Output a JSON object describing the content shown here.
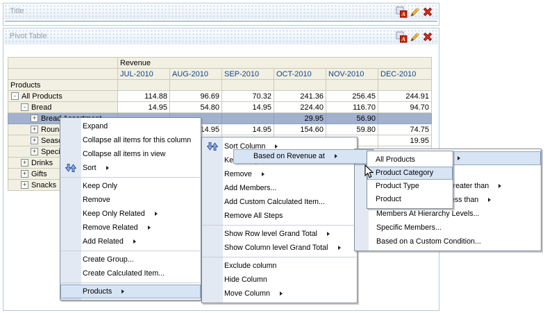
{
  "title_panel": {
    "title": "Title"
  },
  "pivot_panel": {
    "title": "Pivot Table"
  },
  "header_icons": {
    "format_badge": "A"
  },
  "colors": {
    "selection_row": "#A2B1CD",
    "menu_highlight": "#D7E4F4",
    "month_header_text": "#15428B",
    "header_cell_bg": "#F1F0E2",
    "delete_icon_red": "#D93025",
    "pencil_icon_orange": "#EFB540",
    "sort_icon_blue": "#2B4FA0"
  },
  "pivot_table": {
    "measure_label": "Revenue",
    "row_header_label": "Products",
    "column_headers": [
      "JUL-2010",
      "AUG-2010",
      "SEP-2010",
      "OCT-2010",
      "NOV-2010",
      "DEC-2010"
    ],
    "rows": [
      {
        "label": "All Products",
        "level": 1,
        "toggle": "-",
        "selected": false,
        "values": [
          "114.88",
          "96.69",
          "70.32",
          "241.36",
          "256.45",
          "244.91"
        ]
      },
      {
        "label": "Bread",
        "level": 2,
        "toggle": "-",
        "selected": false,
        "values": [
          "14.95",
          "54.80",
          "14.95",
          "224.40",
          "116.70",
          "94.70"
        ]
      },
      {
        "label": "Bread Assortment",
        "level": 3,
        "toggle": "+",
        "selected": true,
        "values": [
          "",
          "",
          "",
          "29.95",
          "56.90",
          ""
        ]
      },
      {
        "label": "Rounds",
        "level": 3,
        "toggle": "+",
        "selected": false,
        "values": [
          "",
          "14.95",
          "14.95",
          "154.60",
          "59.80",
          "74.75"
        ]
      },
      {
        "label": "Season",
        "level": 3,
        "toggle": "+",
        "selected": false,
        "values": [
          "",
          "",
          "",
          "",
          "",
          "19.95"
        ]
      },
      {
        "label": "Speciali",
        "level": 3,
        "toggle": "+",
        "selected": false,
        "values": [
          "",
          "",
          "",
          "",
          "",
          ""
        ]
      },
      {
        "label": "Drinks",
        "level": 2,
        "toggle": "+",
        "selected": false,
        "values": [
          "",
          "",
          "",
          "",
          "",
          ""
        ]
      },
      {
        "label": "Gifts",
        "level": 2,
        "toggle": "+",
        "selected": false,
        "values": [
          "",
          "",
          "",
          "",
          "",
          ""
        ]
      },
      {
        "label": "Snacks",
        "level": 2,
        "toggle": "+",
        "selected": false,
        "values": [
          "",
          "",
          "",
          "",
          "",
          ""
        ]
      }
    ]
  },
  "menus": {
    "row_context": {
      "items": [
        {
          "label": "Expand"
        },
        {
          "label": "Collapse all items for this column"
        },
        {
          "label": "Collapse all items in view"
        },
        {
          "label": "Sort",
          "submenu": true,
          "icon": "sort",
          "sep_after": true
        },
        {
          "label": "Keep Only"
        },
        {
          "label": "Remove"
        },
        {
          "label": "Keep Only Related",
          "submenu": true
        },
        {
          "label": "Remove Related",
          "submenu": true
        },
        {
          "label": "Add Related",
          "submenu": true,
          "sep_after": true
        },
        {
          "label": "Create Group..."
        },
        {
          "label": "Create Calculated Item...",
          "sep_after": true
        },
        {
          "label": "Products",
          "submenu": true,
          "highlighted": true
        }
      ]
    },
    "column_context": {
      "items": [
        {
          "label": "Sort Column",
          "submenu": true,
          "icon": "sort"
        },
        {
          "label": "Keep Only"
        },
        {
          "label": "Remove",
          "submenu": true
        },
        {
          "label": "Add Members..."
        },
        {
          "label": "Add Custom Calculated Item..."
        },
        {
          "label": "Remove All Steps",
          "sep_after": true
        },
        {
          "label": "Show Row level Grand Total",
          "submenu": true
        },
        {
          "label": "Show Column level Grand Total",
          "submenu": true,
          "sep_after": true
        },
        {
          "label": "Exclude column"
        },
        {
          "label": "Hide Column"
        },
        {
          "label": "Move Column",
          "submenu": true
        }
      ]
    },
    "keep_only_submenu": {
      "items": [
        {
          "label": "Based on Revenue at",
          "submenu": true,
          "highlighted": true,
          "spacer_after": true
        },
        {
          "label": "Based on Revenue is greater than",
          "submenu": true
        },
        {
          "label": "Based on Revenue is less than",
          "submenu": true
        },
        {
          "label": "Members At Hierarchy Levels..."
        },
        {
          "label": "Specific Members..."
        },
        {
          "label": "Based on a Custom Condition..."
        }
      ]
    },
    "level_submenu": {
      "items": [
        {
          "label": "All Products"
        },
        {
          "label": "Product Category",
          "highlighted": true
        },
        {
          "label": "Product Type"
        },
        {
          "label": "Product"
        }
      ]
    },
    "floating_item": {
      "label": "Based on Revenue at"
    }
  }
}
